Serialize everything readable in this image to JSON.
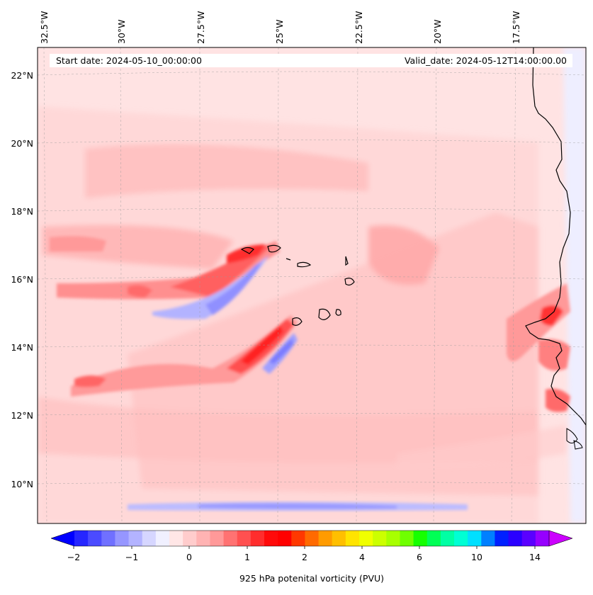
{
  "header": {
    "start_date": "Start date: 2024-05-10_00:00:00",
    "valid_date": "Valid_date: 2024-05-12T14:00:00.00"
  },
  "axes": {
    "lon_labels": [
      "32.5°W",
      "30°W",
      "27.5°W",
      "25°W",
      "22.5°W",
      "20°W",
      "17.5°W"
    ],
    "lat_labels": [
      "22°N",
      "20°N",
      "18°N",
      "16°N",
      "14°N",
      "12°N",
      "10°N"
    ]
  },
  "colorbar": {
    "label": "925 hPa potenital vorticity (PVU)",
    "tick_labels": [
      "−2",
      "−1",
      "0",
      "1",
      "2",
      "4",
      "6",
      "10",
      "14"
    ],
    "colors": [
      "#0000ff",
      "#2626ff",
      "#4b4bff",
      "#7070ff",
      "#9696ff",
      "#b3b3ff",
      "#d6d6ff",
      "#f0f0ff",
      "#ffe6e6",
      "#ffcccc",
      "#ffb3b3",
      "#ff9999",
      "#ff7272",
      "#ff5050",
      "#ff2d2d",
      "#ff0a0a",
      "#ff0000",
      "#ff3800",
      "#ff6a00",
      "#ff9b00",
      "#ffbf00",
      "#ffe400",
      "#f0ff00",
      "#ccff00",
      "#a8ff00",
      "#6fff00",
      "#16ff00",
      "#00ff55",
      "#00ffa4",
      "#00ffd4",
      "#00e0ff",
      "#0080ff",
      "#0020ff",
      "#2a00ff",
      "#5a00ff",
      "#9600ff",
      "#cc00ff"
    ]
  }
}
